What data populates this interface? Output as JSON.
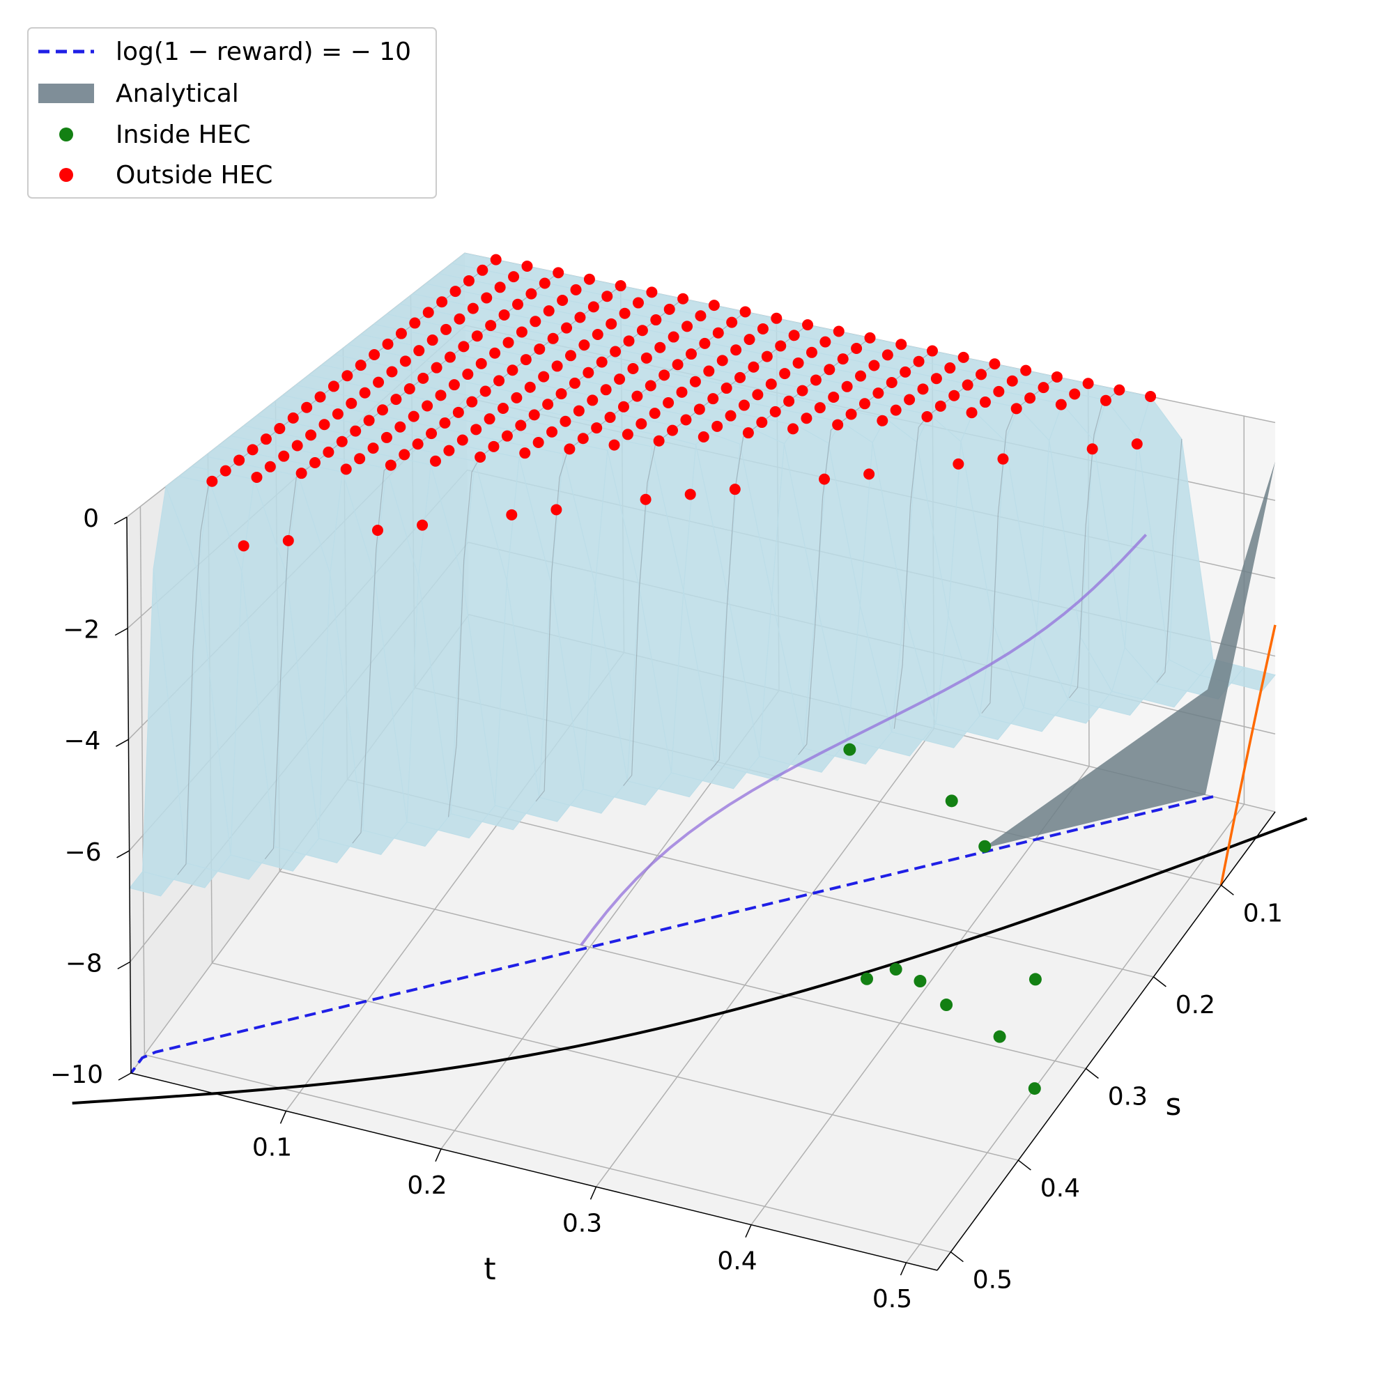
{
  "chart_data": {
    "type": "surface3d",
    "xlabel": "t",
    "ylabel": "s",
    "zlabel": "",
    "x_ticks": [
      "0.1",
      "0.2",
      "0.3",
      "0.4",
      "0.5"
    ],
    "y_ticks": [
      "0.1",
      "0.2",
      "0.3",
      "0.4",
      "0.5"
    ],
    "z_ticks": [
      "0",
      "−2",
      "−4",
      "−6",
      "−8",
      "−10"
    ],
    "xlim": [
      0.0,
      0.52
    ],
    "ylim": [
      0.02,
      0.52
    ],
    "zlim": [
      -10,
      0
    ],
    "grid": true,
    "legend_position": "top-left",
    "legend": [
      {
        "label": "log(1 − reward) = − 10",
        "kind": "dashed-line",
        "color": "#1f1fe6"
      },
      {
        "label": "Analytical",
        "kind": "patch",
        "color": "#7f8e98"
      },
      {
        "label": "Inside HEC",
        "kind": "marker",
        "color": "#138013"
      },
      {
        "label": "Outside HEC",
        "kind": "marker",
        "color": "#ff0000"
      }
    ],
    "surface_color": "#bcdde8",
    "analytical_surface_color": "#6f8088",
    "series": [
      {
        "name": "Inside HEC",
        "color": "#138013",
        "points": [
          [
            0.46,
            0.29,
            -10.0
          ],
          [
            0.5,
            0.33,
            -10.0
          ],
          [
            0.43,
            0.3,
            -9.4
          ],
          [
            0.47,
            0.26,
            -9.3
          ],
          [
            0.38,
            0.26,
            -9.8
          ],
          [
            0.37,
            0.28,
            -9.7
          ],
          [
            0.4,
            0.27,
            -9.7
          ],
          [
            0.42,
            0.22,
            -7.6
          ],
          [
            0.39,
            0.2,
            -7.2
          ],
          [
            0.32,
            0.19,
            -6.8
          ]
        ]
      },
      {
        "name": "Outside HEC",
        "color": "#ff0000",
        "grid_t_values": [
          0.02,
          0.04,
          0.06,
          0.08,
          0.1,
          0.12,
          0.14,
          0.16,
          0.18,
          0.2,
          0.22,
          0.24,
          0.26,
          0.28,
          0.3,
          0.32,
          0.34,
          0.36,
          0.38,
          0.4,
          0.42,
          0.44,
          0.46,
          0.48,
          0.5
        ],
        "grid_s_values": [
          0.02,
          0.04,
          0.06,
          0.08,
          0.1,
          0.12,
          0.14,
          0.16,
          0.18,
          0.2,
          0.22,
          0.24,
          0.26,
          0.28,
          0.3,
          0.32,
          0.34,
          0.36,
          0.38,
          0.4,
          0.42,
          0.44,
          0.46,
          0.48,
          0.5
        ],
        "excluded_region": "points with t + s > 0.5 are not sampled; points near t · s boundary fall Inside HEC"
      }
    ],
    "curves": [
      {
        "name": "log(1 − reward) = − 10",
        "color": "#1f1fe6",
        "style": "dashed",
        "z": -10
      },
      {
        "name": "",
        "color": "#000000",
        "style": "solid",
        "z": -10
      },
      {
        "name": "",
        "color": "#ff6a00",
        "style": "solid"
      },
      {
        "name": "",
        "color": "#9370db",
        "style": "solid"
      }
    ]
  }
}
